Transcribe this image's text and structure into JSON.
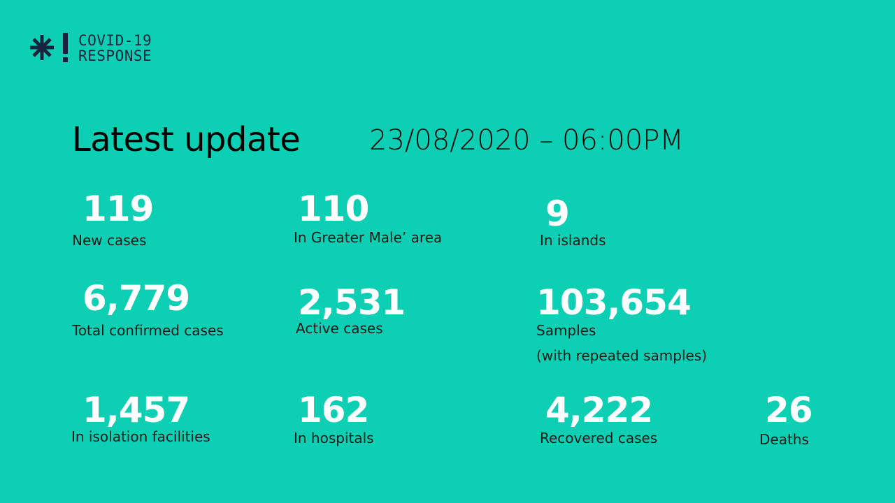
{
  "logo": {
    "line1": "COVID-19",
    "line2": "RESPONSE",
    "icon": "snowflake-exclamation-icon"
  },
  "header": {
    "title": "Latest update",
    "datetime": "23/08/2020 – 06:00PM"
  },
  "stats": [
    {
      "value": "119",
      "label": "New cases"
    },
    {
      "value": "110",
      "label": "In Greater Male’ area"
    },
    {
      "value": "9",
      "label": "In islands"
    },
    {
      "value": "6,779",
      "label": "Total confirmed cases"
    },
    {
      "value": "2,531",
      "label": "Active cases"
    },
    {
      "value": "103,654",
      "label": "Samples",
      "note": "(with repeated samples)"
    },
    {
      "value": "1,457",
      "label": "In isolation facilities"
    },
    {
      "value": "162",
      "label": "In hospitals"
    },
    {
      "value": "4,222",
      "label": "Recovered cases"
    },
    {
      "value": "26",
      "label": "Deaths"
    }
  ],
  "colors": {
    "background": "#0ccfb3",
    "number": "#ffffff",
    "logo": "#172440"
  }
}
